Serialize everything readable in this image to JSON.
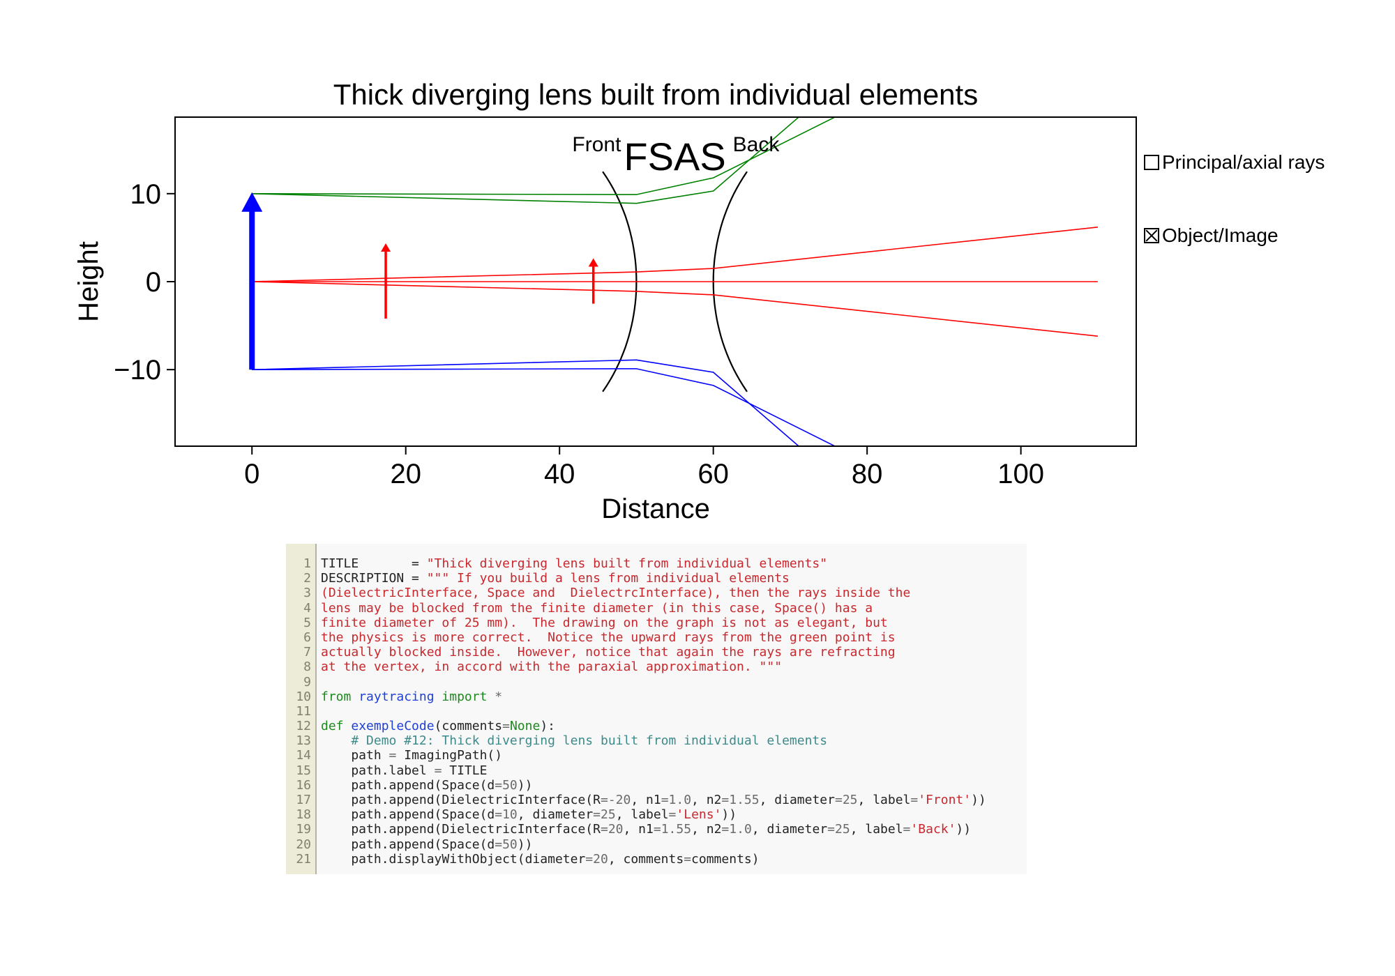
{
  "chart_data": {
    "type": "line",
    "title": "Thick diverging lens built from individual elements",
    "xlabel": "Distance",
    "ylabel": "Height",
    "xlim": [
      -10,
      115
    ],
    "ylim": [
      -18.7,
      18.7
    ],
    "xticks": [
      0,
      20,
      40,
      60,
      80,
      100
    ],
    "yticks": [
      -10,
      0,
      10
    ],
    "xtick_labels": [
      "0",
      "20",
      "40",
      "60",
      "80",
      "100"
    ],
    "ytick_labels": [
      "−10",
      "0",
      "10"
    ],
    "surfaces": [
      {
        "label": "Front",
        "vertex_x": 50,
        "radius": -20,
        "half_diameter": 12.5,
        "color": "#000000"
      },
      {
        "label": "Back",
        "vertex_x": 60,
        "radius": 20,
        "half_diameter": 12.5,
        "color": "#000000"
      }
    ],
    "point_labels": {
      "text": "FSAS",
      "x": 55,
      "y": 15.3
    },
    "object": {
      "x": 0,
      "y_bottom": -10,
      "y_top": 10,
      "color": "#0000ff"
    },
    "images": [
      {
        "x": 17.4,
        "y_bottom": -4.2,
        "y_top": 4.2,
        "color": "#ff0000"
      },
      {
        "x": 44.4,
        "y_bottom": -2.5,
        "y_top": 2.5,
        "color": "#ff0000"
      }
    ],
    "series": [
      {
        "color": "#008000",
        "x": [
          0,
          50,
          60,
          76.5
        ],
        "y": [
          10,
          9.9,
          11.8,
          19
        ]
      },
      {
        "color": "#008000",
        "x": [
          0,
          50,
          60,
          71.5
        ],
        "y": [
          10,
          8.9,
          10.3,
          19
        ]
      },
      {
        "color": "#ff0000",
        "x": [
          0,
          50,
          60,
          110
        ],
        "y": [
          0,
          1.1,
          1.5,
          6.2
        ]
      },
      {
        "color": "#ff0000",
        "x": [
          0,
          110
        ],
        "y": [
          0,
          0
        ]
      },
      {
        "color": "#ff0000",
        "x": [
          0,
          50,
          60,
          110
        ],
        "y": [
          0,
          -1.1,
          -1.5,
          -6.2
        ]
      },
      {
        "color": "#0000ff",
        "x": [
          0,
          50,
          60,
          71.5
        ],
        "y": [
          -10,
          -8.9,
          -10.3,
          -19
        ]
      },
      {
        "color": "#0000ff",
        "x": [
          0,
          50,
          60,
          76.5
        ],
        "y": [
          -10,
          -9.9,
          -11.8,
          -19
        ]
      }
    ]
  },
  "controls": [
    {
      "label": "Principal/axial rays",
      "checked": false
    },
    {
      "label": "Object/Image",
      "checked": true
    }
  ],
  "code": {
    "lines": [
      [
        [
          "",
          "TITLE       = "
        ],
        [
          "str",
          "\"Thick diverging lens built from individual elements\""
        ]
      ],
      [
        [
          "",
          "DESCRIPTION = "
        ],
        [
          "str",
          "\"\"\" If you build a lens from individual elements"
        ]
      ],
      [
        [
          "str",
          "(DielectricInterface, Space and  DielectrcInterface), then the rays inside the"
        ]
      ],
      [
        [
          "str",
          "lens may be blocked from the finite diameter (in this case, Space() has a"
        ]
      ],
      [
        [
          "str",
          "finite diameter of 25 mm).  The drawing on the graph is not as elegant, but"
        ]
      ],
      [
        [
          "str",
          "the physics is more correct.  Notice the upward rays from the green point is"
        ]
      ],
      [
        [
          "str",
          "actually blocked inside.  However, notice that again the rays are refracting"
        ]
      ],
      [
        [
          "str",
          "at the vertex, in accord with the paraxial approximation. \"\"\""
        ]
      ],
      [],
      [
        [
          "kw",
          "from"
        ],
        [
          "",
          " "
        ],
        [
          "mod",
          "raytracing"
        ],
        [
          "",
          " "
        ],
        [
          "kw",
          "import"
        ],
        [
          "",
          " "
        ],
        [
          "op",
          "*"
        ]
      ],
      [],
      [
        [
          "kw",
          "def"
        ],
        [
          "",
          " "
        ],
        [
          "fn",
          "exempleCode"
        ],
        [
          "",
          "(comments"
        ],
        [
          "op",
          "="
        ],
        [
          "kw",
          "None"
        ],
        [
          "",
          "):"
        ]
      ],
      [
        [
          "",
          "    "
        ],
        [
          "com",
          "# Demo #12: Thick diverging lens built from individual elements"
        ]
      ],
      [
        [
          "",
          "    path "
        ],
        [
          "op",
          "="
        ],
        [
          "",
          " ImagingPath()"
        ]
      ],
      [
        [
          "",
          "    path.label "
        ],
        [
          "op",
          "="
        ],
        [
          "",
          " TITLE"
        ]
      ],
      [
        [
          "",
          "    path.append(Space(d"
        ],
        [
          "op",
          "="
        ],
        [
          "num",
          "50"
        ],
        [
          "",
          "))"
        ]
      ],
      [
        [
          "",
          "    path.append(DielectricInterface(R"
        ],
        [
          "op",
          "="
        ],
        [
          "num",
          "-20"
        ],
        [
          "",
          ", n1"
        ],
        [
          "op",
          "="
        ],
        [
          "num",
          "1.0"
        ],
        [
          "",
          ", n2"
        ],
        [
          "op",
          "="
        ],
        [
          "num",
          "1.55"
        ],
        [
          "",
          ", diameter"
        ],
        [
          "op",
          "="
        ],
        [
          "num",
          "25"
        ],
        [
          "",
          ", label"
        ],
        [
          "op",
          "="
        ],
        [
          "str",
          "'Front'"
        ],
        [
          "",
          "))"
        ]
      ],
      [
        [
          "",
          "    path.append(Space(d"
        ],
        [
          "op",
          "="
        ],
        [
          "num",
          "10"
        ],
        [
          "",
          ", diameter"
        ],
        [
          "op",
          "="
        ],
        [
          "num",
          "25"
        ],
        [
          "",
          ", label"
        ],
        [
          "op",
          "="
        ],
        [
          "str",
          "'Lens'"
        ],
        [
          "",
          "))"
        ]
      ],
      [
        [
          "",
          "    path.append(DielectricInterface(R"
        ],
        [
          "op",
          "="
        ],
        [
          "num",
          "20"
        ],
        [
          "",
          ", n1"
        ],
        [
          "op",
          "="
        ],
        [
          "num",
          "1.55"
        ],
        [
          "",
          ", n2"
        ],
        [
          "op",
          "="
        ],
        [
          "num",
          "1.0"
        ],
        [
          "",
          ", diameter"
        ],
        [
          "op",
          "="
        ],
        [
          "num",
          "25"
        ],
        [
          "",
          ", label"
        ],
        [
          "op",
          "="
        ],
        [
          "str",
          "'Back'"
        ],
        [
          "",
          "))"
        ]
      ],
      [
        [
          "",
          "    path.append(Space(d"
        ],
        [
          "op",
          "="
        ],
        [
          "num",
          "50"
        ],
        [
          "",
          "))"
        ]
      ],
      [
        [
          "",
          "    path.displayWithObject(diameter"
        ],
        [
          "op",
          "="
        ],
        [
          "num",
          "20"
        ],
        [
          "",
          ", comments"
        ],
        [
          "op",
          "="
        ],
        [
          "",
          "comments)"
        ]
      ]
    ]
  }
}
